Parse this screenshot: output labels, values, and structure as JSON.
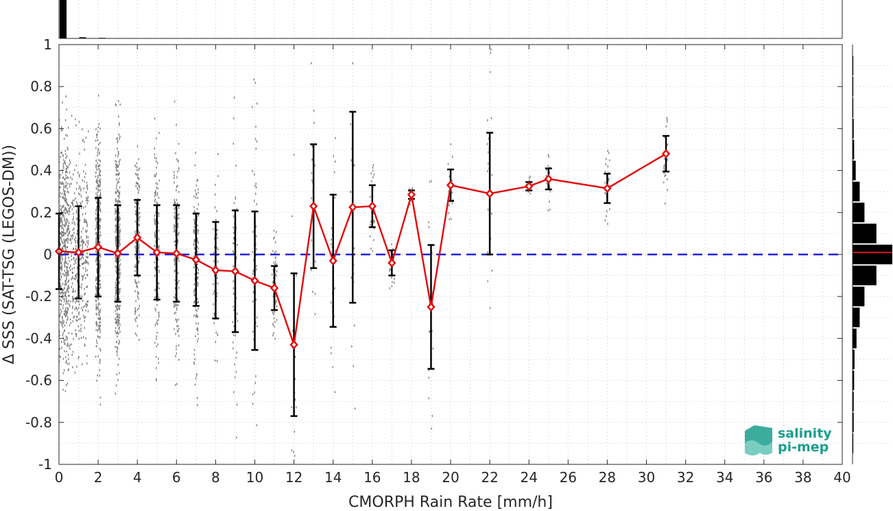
{
  "chart_data": {
    "type": "scatter",
    "title": "",
    "xlabel": "CMORPH Rain Rate [mm/h]",
    "ylabel": "Δ SSS (SAT-TSG (LEGOS-DM))",
    "xlim": [
      0,
      40
    ],
    "ylim": [
      -1,
      1
    ],
    "grid": true,
    "x_ticks": [
      "0",
      "2",
      "4",
      "6",
      "8",
      "10",
      "12",
      "14",
      "16",
      "18",
      "20",
      "22",
      "24",
      "26",
      "28",
      "30",
      "32",
      "34",
      "36",
      "38",
      "40"
    ],
    "y_ticks": [
      "1",
      "0.8",
      "0.6",
      "0.4",
      "0.2",
      "0",
      "-0.2",
      "-0.4",
      "-0.6",
      "-0.8",
      "-1"
    ],
    "reference_line": {
      "y": 0,
      "style": "dashed",
      "color": "#1f1fdd"
    },
    "binned_mean": {
      "color": "#e01010",
      "x": [
        0,
        1,
        2,
        3,
        4,
        5,
        6,
        7,
        8,
        9,
        10,
        11,
        12,
        13,
        14,
        15,
        16,
        17,
        18,
        19,
        20,
        22,
        24,
        25,
        28,
        31
      ],
      "mean": [
        0.015,
        0.01,
        0.035,
        0.005,
        0.08,
        0.01,
        0.005,
        -0.025,
        -0.075,
        -0.08,
        -0.125,
        -0.16,
        -0.43,
        0.23,
        -0.03,
        0.225,
        0.23,
        -0.04,
        0.285,
        -0.25,
        0.33,
        0.29,
        0.325,
        0.36,
        0.315,
        0.48
      ],
      "std": [
        0.18,
        0.22,
        0.235,
        0.23,
        0.18,
        0.225,
        0.23,
        0.22,
        0.23,
        0.29,
        0.33,
        0.105,
        0.34,
        0.295,
        0.315,
        0.455,
        0.1,
        0.06,
        0.02,
        0.295,
        0.075,
        0.29,
        0.02,
        0.05,
        0.07,
        0.085
      ]
    },
    "scatter_color": "#808080",
    "top_histogram": {
      "color": "#000000",
      "bins_x": [
        0,
        1,
        2,
        3
      ],
      "relative_height": [
        1.0,
        0.03,
        0.015,
        0.01
      ]
    },
    "right_histogram": {
      "color": "#000000",
      "mean_line_color": "#e01010",
      "bins_y": [
        -0.9,
        -0.8,
        -0.7,
        -0.6,
        -0.5,
        -0.4,
        -0.3,
        -0.2,
        -0.1,
        0.0,
        0.1,
        0.2,
        0.3,
        0.4,
        0.5,
        0.6,
        0.7,
        0.8,
        0.9
      ],
      "relative_width": [
        0.02,
        0.03,
        0.03,
        0.04,
        0.05,
        0.1,
        0.18,
        0.3,
        0.6,
        1.0,
        0.6,
        0.3,
        0.18,
        0.08,
        0.04,
        0.03,
        0.02,
        0.02,
        0.02
      ]
    }
  },
  "logo": {
    "line1": "salinity",
    "line2": "pi-mep",
    "color": "#1a9e8e"
  }
}
